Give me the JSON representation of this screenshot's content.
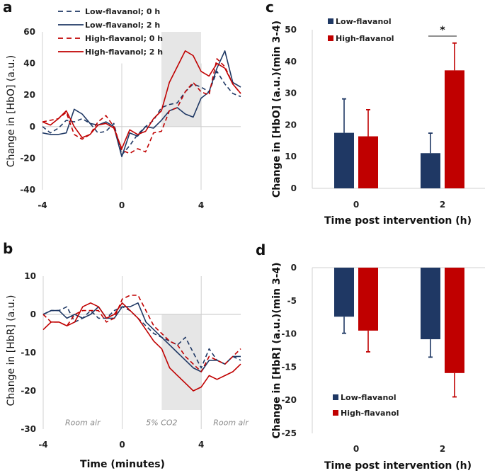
{
  "colors": {
    "low": "#1f3864",
    "high": "#c00000",
    "grid": "#d0d0d0",
    "shade": "#e6e6e6"
  },
  "chart_data": [
    {
      "panel": "a",
      "type": "line",
      "ylabel": "Change in [HbO] (a.u.)",
      "xlabel": "",
      "xlim": [
        -4,
        6
      ],
      "ylim": [
        -40,
        60
      ],
      "xticks": [
        "-4",
        "0",
        "4"
      ],
      "xtick_values": [
        -4,
        0,
        4
      ],
      "yticks": [
        "60",
        "40",
        "20",
        "0",
        "-20",
        "-40"
      ],
      "ytick_values": [
        60,
        40,
        20,
        0,
        -20,
        -40
      ],
      "shaded_region": {
        "x": [
          2,
          4
        ],
        "y": [
          0,
          60
        ]
      },
      "legend_position": "top-left",
      "x": [
        -4,
        -3.6,
        -3.2,
        -2.8,
        -2.4,
        -2.0,
        -1.6,
        -1.2,
        -0.8,
        -0.4,
        0,
        0.4,
        0.8,
        1.2,
        1.6,
        2.0,
        2.4,
        2.8,
        3.2,
        3.6,
        4.0,
        4.4,
        4.8,
        5.2,
        5.6,
        6.0
      ],
      "series": [
        {
          "name": "Low-flavanol; 0 h",
          "color": "low",
          "dash": true,
          "values": [
            0,
            -4,
            -1,
            4,
            3,
            5,
            2,
            -4,
            -3,
            2,
            -18,
            -12,
            -5,
            0,
            4,
            12,
            14,
            15,
            22,
            27,
            25,
            22,
            35,
            27,
            21,
            19
          ]
        },
        {
          "name": "Low-flavanol; 2 h",
          "color": "low",
          "dash": false,
          "values": [
            -4,
            -5,
            -5,
            -4,
            11,
            8,
            2,
            1,
            3,
            0,
            -19,
            -4,
            -6,
            0,
            -1,
            4,
            10,
            12,
            8,
            6,
            18,
            22,
            37,
            48,
            28,
            25
          ]
        },
        {
          "name": "High-flavanol; 0 h",
          "color": "high",
          "dash": true,
          "values": [
            3,
            4,
            5,
            9,
            -5,
            -8,
            -5,
            3,
            7,
            0,
            -15,
            -17,
            -14,
            -16,
            -4,
            -3,
            10,
            12,
            22,
            28,
            22,
            20,
            43,
            38,
            27,
            21
          ]
        },
        {
          "name": "High-flavanol; 2 h",
          "color": "high",
          "dash": false,
          "values": [
            3,
            1,
            5,
            10,
            0,
            -7,
            -5,
            1,
            2,
            -1,
            -14,
            -2,
            -5,
            -3,
            5,
            10,
            28,
            38,
            48,
            45,
            35,
            32,
            40,
            37,
            27,
            21
          ]
        }
      ]
    },
    {
      "panel": "b",
      "type": "line",
      "ylabel": "Change in [HbR] (a.u.)",
      "xlabel": "Time (minutes)",
      "xlim": [
        -4,
        6
      ],
      "ylim": [
        -30,
        10
      ],
      "xticks": [
        "-4",
        "0",
        "4"
      ],
      "xtick_values": [
        -4,
        0,
        4
      ],
      "yticks": [
        "10",
        "0",
        "-10",
        "-20",
        "-30"
      ],
      "ytick_values": [
        10,
        0,
        -10,
        -20,
        -30
      ],
      "shaded_region": {
        "x": [
          2,
          4
        ],
        "y": [
          -25,
          0
        ]
      },
      "annotations": [
        {
          "text": "Room air",
          "x": -2,
          "y": -29
        },
        {
          "text": "5% CO2",
          "x": 2,
          "y": -29
        },
        {
          "text": "Room air",
          "x": 5.5,
          "y": -29
        }
      ],
      "x": [
        -4,
        -3.6,
        -3.2,
        -2.8,
        -2.4,
        -2.0,
        -1.6,
        -1.2,
        -0.8,
        -0.4,
        0,
        0.4,
        0.8,
        1.2,
        1.6,
        2.0,
        2.4,
        2.8,
        3.2,
        3.6,
        4.0,
        4.4,
        4.8,
        5.2,
        5.6,
        6.0
      ],
      "series": [
        {
          "name": "Low-flavanol; 0 h",
          "color": "low",
          "dash": true,
          "values": [
            0,
            1,
            1,
            2,
            -2,
            -1,
            1,
            -1,
            -1,
            1,
            2,
            1,
            -1,
            -3,
            -5,
            -6,
            -7,
            -8,
            -6,
            -10,
            -14,
            -9,
            -12,
            -13,
            -11,
            -12
          ]
        },
        {
          "name": "Low-flavanol; 2 h",
          "color": "low",
          "dash": false,
          "values": [
            0,
            1,
            1,
            -1,
            0,
            -1,
            0,
            2,
            -1,
            -1,
            2,
            2,
            3,
            -2,
            -4,
            -6,
            -8,
            -10,
            -12,
            -14,
            -15,
            -12,
            -12,
            -13,
            -11,
            -11
          ]
        },
        {
          "name": "High-flavanol; 0 h",
          "color": "high",
          "dash": true,
          "values": [
            0,
            -2,
            -2,
            -3,
            0,
            1,
            1,
            1,
            -2,
            -1,
            4,
            5,
            5,
            1,
            -3,
            -5,
            -7,
            -8,
            -11,
            -13,
            -15,
            -11,
            -12,
            -13,
            -11,
            -9
          ]
        },
        {
          "name": "High-flavanol; 2 h",
          "color": "high",
          "dash": false,
          "values": [
            -4,
            -2,
            -2,
            -3,
            -2,
            2,
            3,
            2,
            -1,
            0,
            3,
            1,
            -1,
            -4,
            -7,
            -9,
            -14,
            -16,
            -18,
            -20,
            -19,
            -16,
            -17,
            -16,
            -15,
            -13
          ]
        }
      ]
    },
    {
      "panel": "c",
      "type": "bar",
      "ylabel": "Change in [HbO] (a.u.)(min 3-4)",
      "xlabel": "Time post intervention (h)",
      "categories": [
        "0",
        "2"
      ],
      "ylim": [
        0,
        50
      ],
      "yticks": [
        "50",
        "40",
        "30",
        "20",
        "10",
        "0"
      ],
      "ytick_values": [
        50,
        40,
        30,
        20,
        10,
        0
      ],
      "legend_position": "top-left",
      "significance": {
        "label": "*",
        "category": "2"
      },
      "series": [
        {
          "name": "Low-flavanol",
          "color": "low",
          "values": [
            17.5,
            11.1
          ],
          "error_upper": [
            28.2,
            17.4
          ]
        },
        {
          "name": "High-flavanol",
          "color": "high",
          "values": [
            16.4,
            37.2
          ],
          "error_upper": [
            24.8,
            45.8
          ]
        }
      ]
    },
    {
      "panel": "d",
      "type": "bar",
      "ylabel": "Change in [HbR] (a.u.)(min 3-4)",
      "xlabel": "Time post intervention (h)",
      "categories": [
        "0",
        "2"
      ],
      "ylim": [
        -25,
        0
      ],
      "yticks": [
        "0",
        "-5",
        "-10",
        "-15",
        "-20",
        "-25"
      ],
      "ytick_values": [
        0,
        -5,
        -10,
        -15,
        -20,
        -25
      ],
      "legend_position": "bottom-left",
      "series": [
        {
          "name": "Low-flavanol",
          "color": "low",
          "values": [
            -7.4,
            -10.8
          ],
          "error_lower": [
            -9.9,
            -13.5
          ]
        },
        {
          "name": "High-flavanol",
          "color": "high",
          "values": [
            -9.5,
            -15.9
          ],
          "error_lower": [
            -12.7,
            -19.5
          ]
        }
      ]
    }
  ]
}
